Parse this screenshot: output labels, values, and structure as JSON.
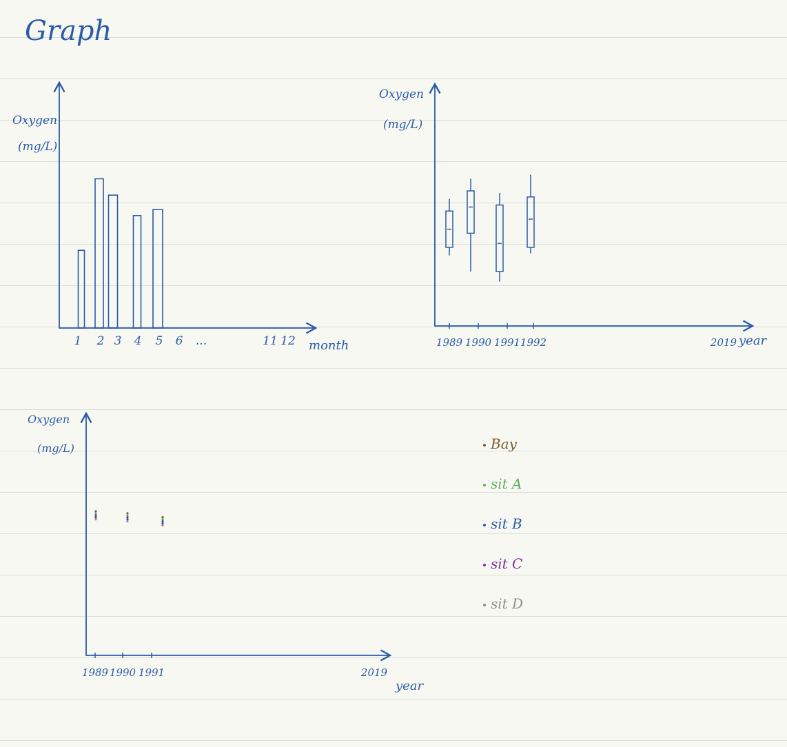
{
  "page_title": "Graph",
  "chart_data": [
    {
      "type": "bar",
      "ylabel_line1": "Oxygen",
      "ylabel_line2": "(mg/L)",
      "xlabel": "month",
      "tick_labels": [
        "1",
        "2",
        "3",
        "4",
        "5",
        "6",
        "...",
        "11",
        "12"
      ],
      "categories": [
        "1",
        "2",
        "3",
        "4",
        "5"
      ],
      "values": [
        3.8,
        7.3,
        6.5,
        5.5,
        5.8
      ],
      "ylim": [
        0,
        12
      ],
      "grid": false
    },
    {
      "type": "box",
      "ylabel_line1": "Oxygen",
      "ylabel_line2": "(mg/L)",
      "xlabel": "year",
      "tick_labels": [
        "1989",
        "1990",
        "1991",
        "1992",
        "2019"
      ],
      "categories": [
        "1989",
        "1990",
        "1991",
        "1992"
      ],
      "boxes": [
        {
          "year": "1989",
          "whisker_low": 3.5,
          "q1": 3.9,
          "median": 4.8,
          "q3": 5.7,
          "whisker_high": 6.3
        },
        {
          "year": "1990",
          "whisker_low": 2.7,
          "q1": 4.6,
          "median": 5.9,
          "q3": 6.7,
          "whisker_high": 7.3
        },
        {
          "year": "1991",
          "whisker_low": 2.2,
          "q1": 2.7,
          "median": 4.1,
          "q3": 6.0,
          "whisker_high": 6.6
        },
        {
          "year": "1992",
          "whisker_low": 3.6,
          "q1": 3.9,
          "median": 5.3,
          "q3": 6.4,
          "whisker_high": 7.5
        }
      ],
      "ylim": [
        0,
        12
      ],
      "grid": false
    },
    {
      "type": "scatter",
      "ylabel_line1": "Oxygen",
      "ylabel_line2": "(mg/L)",
      "xlabel": "year",
      "tick_labels": [
        "1989",
        "1990",
        "1991",
        "2019"
      ],
      "categories": [
        "1989",
        "1990",
        "1991"
      ],
      "legend": [
        {
          "label": "Bay",
          "color": "#7a5c2e"
        },
        {
          "label": "sit A",
          "color": "#5fae5a"
        },
        {
          "label": "sit B",
          "color": "#2a5ba6"
        },
        {
          "label": "sit C",
          "color": "#7d2fa0"
        },
        {
          "label": "sit D",
          "color": "#8f8f8f"
        }
      ],
      "series": [
        {
          "name": "Bay",
          "color": "#7a5c2e",
          "values": [
            7.15,
            7.05,
            6.85
          ]
        },
        {
          "name": "sit A",
          "color": "#5fae5a",
          "values": [
            7.05,
            6.95,
            6.75
          ]
        },
        {
          "name": "sit B",
          "color": "#2a5ba6",
          "values": [
            6.95,
            6.85,
            6.65
          ]
        },
        {
          "name": "sit C",
          "color": "#7d2fa0",
          "values": [
            6.85,
            6.75,
            6.55
          ]
        },
        {
          "name": "sit D",
          "color": "#8f8f8f",
          "values": [
            6.75,
            6.65,
            6.45
          ]
        }
      ],
      "ylim": [
        0,
        12
      ],
      "grid": false
    }
  ]
}
